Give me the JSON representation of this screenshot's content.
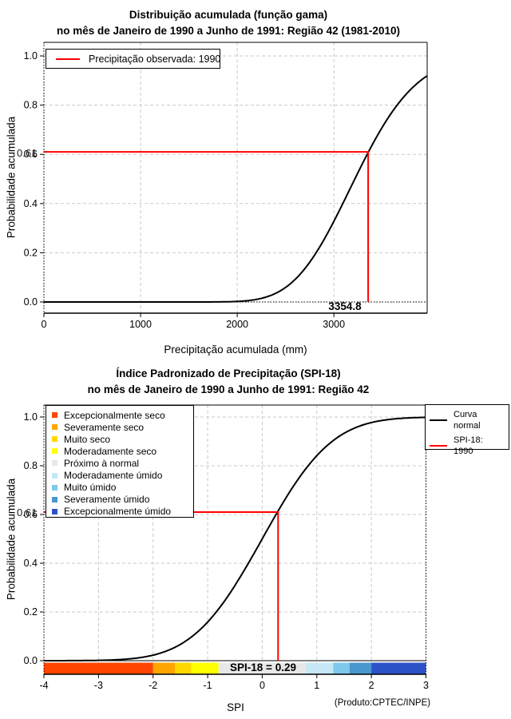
{
  "chart_data": [
    {
      "type": "line",
      "title": "Distribuição acumulada (função gama)",
      "subtitle": "no mês de Janeiro de 1990 a Junho de 1991: Região 42 (1981-2010)",
      "xlabel": "Precipitação acumulada (mm)",
      "ylabel": "Probabilidade acumulada",
      "xlim": [
        0,
        3965
      ],
      "ylim": [
        0,
        1
      ],
      "x_ticks": [
        0,
        1000,
        2000,
        3000
      ],
      "y_ticks": [
        0,
        0.2,
        0.4,
        0.6,
        0.8,
        1
      ],
      "grid": true,
      "curve_color": "#000000",
      "marker_color": "#FF0000",
      "series": [
        {
          "name": "Distribuição gama acumulada (1981-2010)",
          "kind": "cdf_curve",
          "model": "gamma",
          "shape": 42,
          "scale": 77.2
        },
        {
          "name": "Precipitação observada: 1990",
          "kind": "reference_marker",
          "x": 3354.8,
          "y": 0.61
        }
      ],
      "legend": [
        {
          "label": "Precipitação observada: 1990",
          "color": "#FF0000"
        }
      ],
      "marker_labels": {
        "y": "0.61",
        "x": "3354.8"
      }
    },
    {
      "type": "line",
      "title": "Índice Padronizado de Precipitação (SPI-18)",
      "subtitle": "no mês de Janeiro de 1990 a Junho de 1991: Região 42",
      "xlabel": "SPI",
      "ylabel": "Probabilidade acumulada",
      "xlim": [
        -4,
        3
      ],
      "ylim": [
        0,
        1
      ],
      "x_ticks": [
        -4,
        -3,
        -2,
        -1,
        0,
        1,
        2,
        3
      ],
      "y_ticks": [
        0,
        0.2,
        0.4,
        0.6,
        0.8,
        1
      ],
      "grid": true,
      "curve_color": "#000000",
      "marker_color": "#FF0000",
      "series": [
        {
          "name": "Curva normal",
          "kind": "cdf_curve",
          "model": "normal",
          "mean": 0,
          "sd": 1
        },
        {
          "name": "SPI-18: 1990",
          "kind": "reference_marker",
          "x": 0.29,
          "y": 0.61
        }
      ],
      "legend_right": [
        {
          "label": "Curva normal",
          "color": "#000000"
        },
        {
          "label": "SPI-18: 1990",
          "color": "#FF0000"
        }
      ],
      "categories": [
        {
          "label": "Excepcionalmente seco",
          "color": "#FF4500"
        },
        {
          "label": "Severamente seco",
          "color": "#FFA500"
        },
        {
          "label": "Muito seco",
          "color": "#FFD700"
        },
        {
          "label": "Moderadamente seco",
          "color": "#FFFF00"
        },
        {
          "label": "Próximo à normal",
          "color": "#E8E8E8"
        },
        {
          "label": "Moderadamente úmido",
          "color": "#C6E7F5"
        },
        {
          "label": "Muito úmido",
          "color": "#7EC8EB"
        },
        {
          "label": "Severamente úmido",
          "color": "#4897CE"
        },
        {
          "label": "Excepcionalmente úmido",
          "color": "#2C52C8"
        }
      ],
      "colorbar": {
        "breaks": [
          -4,
          -2,
          -1.6,
          -1.3,
          -0.8,
          0.8,
          1.3,
          1.6,
          2,
          3
        ]
      },
      "bar_label": "SPI-18 = 0.29",
      "marker_labels": {
        "y": "0.61"
      },
      "footer": "(Produto:CPTEC/INPE)"
    }
  ]
}
